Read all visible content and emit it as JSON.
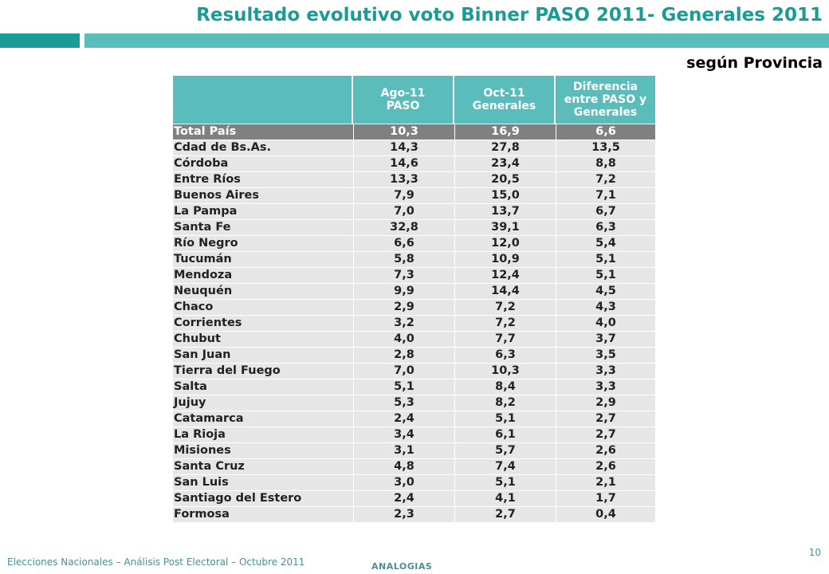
{
  "title": "Resultado evolutivo voto Binner PASO 2011- Generales 2011",
  "subtitle": "según Provincia",
  "colors": {
    "accent_dark": "#1a9b95",
    "accent_light": "#5bbcbc",
    "total_row": "#808080",
    "row_bg": "#e6e6e6"
  },
  "table": {
    "headers": [
      {
        "lines": [
          "",
          ""
        ]
      },
      {
        "lines": [
          "Ago-11",
          "PASO"
        ]
      },
      {
        "lines": [
          "Oct-11",
          "Generales"
        ]
      },
      {
        "lines": [
          "Diferencia",
          "entre  PASO y",
          "Generales"
        ]
      }
    ],
    "rows": [
      [
        "Total País",
        "10,3",
        "16,9",
        "6,6"
      ],
      [
        "Cdad de Bs.As.",
        "14,3",
        "27,8",
        "13,5"
      ],
      [
        "Córdoba",
        "14,6",
        "23,4",
        "8,8"
      ],
      [
        "Entre Ríos",
        "13,3",
        "20,5",
        "7,2"
      ],
      [
        "Buenos Aires",
        "7,9",
        "15,0",
        "7,1"
      ],
      [
        "La Pampa",
        "7,0",
        "13,7",
        "6,7"
      ],
      [
        "Santa Fe",
        "32,8",
        "39,1",
        "6,3"
      ],
      [
        "Río Negro",
        "6,6",
        "12,0",
        "5,4"
      ],
      [
        "Tucumán",
        "5,8",
        "10,9",
        "5,1"
      ],
      [
        "Mendoza",
        "7,3",
        "12,4",
        "5,1"
      ],
      [
        "Neuquén",
        "9,9",
        "14,4",
        "4,5"
      ],
      [
        "Chaco",
        "2,9",
        "7,2",
        "4,3"
      ],
      [
        "Corrientes",
        "3,2",
        "7,2",
        "4,0"
      ],
      [
        "Chubut",
        "4,0",
        "7,7",
        "3,7"
      ],
      [
        "San Juan",
        "2,8",
        "6,3",
        "3,5"
      ],
      [
        "Tierra del Fuego",
        "7,0",
        "10,3",
        "3,3"
      ],
      [
        "Salta",
        "5,1",
        "8,4",
        "3,3"
      ],
      [
        "Jujuy",
        "5,3",
        "8,2",
        "2,9"
      ],
      [
        "Catamarca",
        "2,4",
        "5,1",
        "2,7"
      ],
      [
        "La Rioja",
        "3,4",
        "6,1",
        "2,7"
      ],
      [
        "Misiones",
        "3,1",
        "5,7",
        "2,6"
      ],
      [
        "Santa Cruz",
        "4,8",
        "7,4",
        "2,6"
      ],
      [
        "San Luis",
        "3,0",
        "5,1",
        "2,1"
      ],
      [
        "Santiago del Estero",
        "2,4",
        "4,1",
        "1,7"
      ],
      [
        "Formosa",
        "2,3",
        "2,7",
        "0,4"
      ]
    ]
  },
  "footer": {
    "left": "Elecciones Nacionales – Análisis Post Electoral – Octubre 2011",
    "center": "ANALOGIAS",
    "page": "10"
  }
}
